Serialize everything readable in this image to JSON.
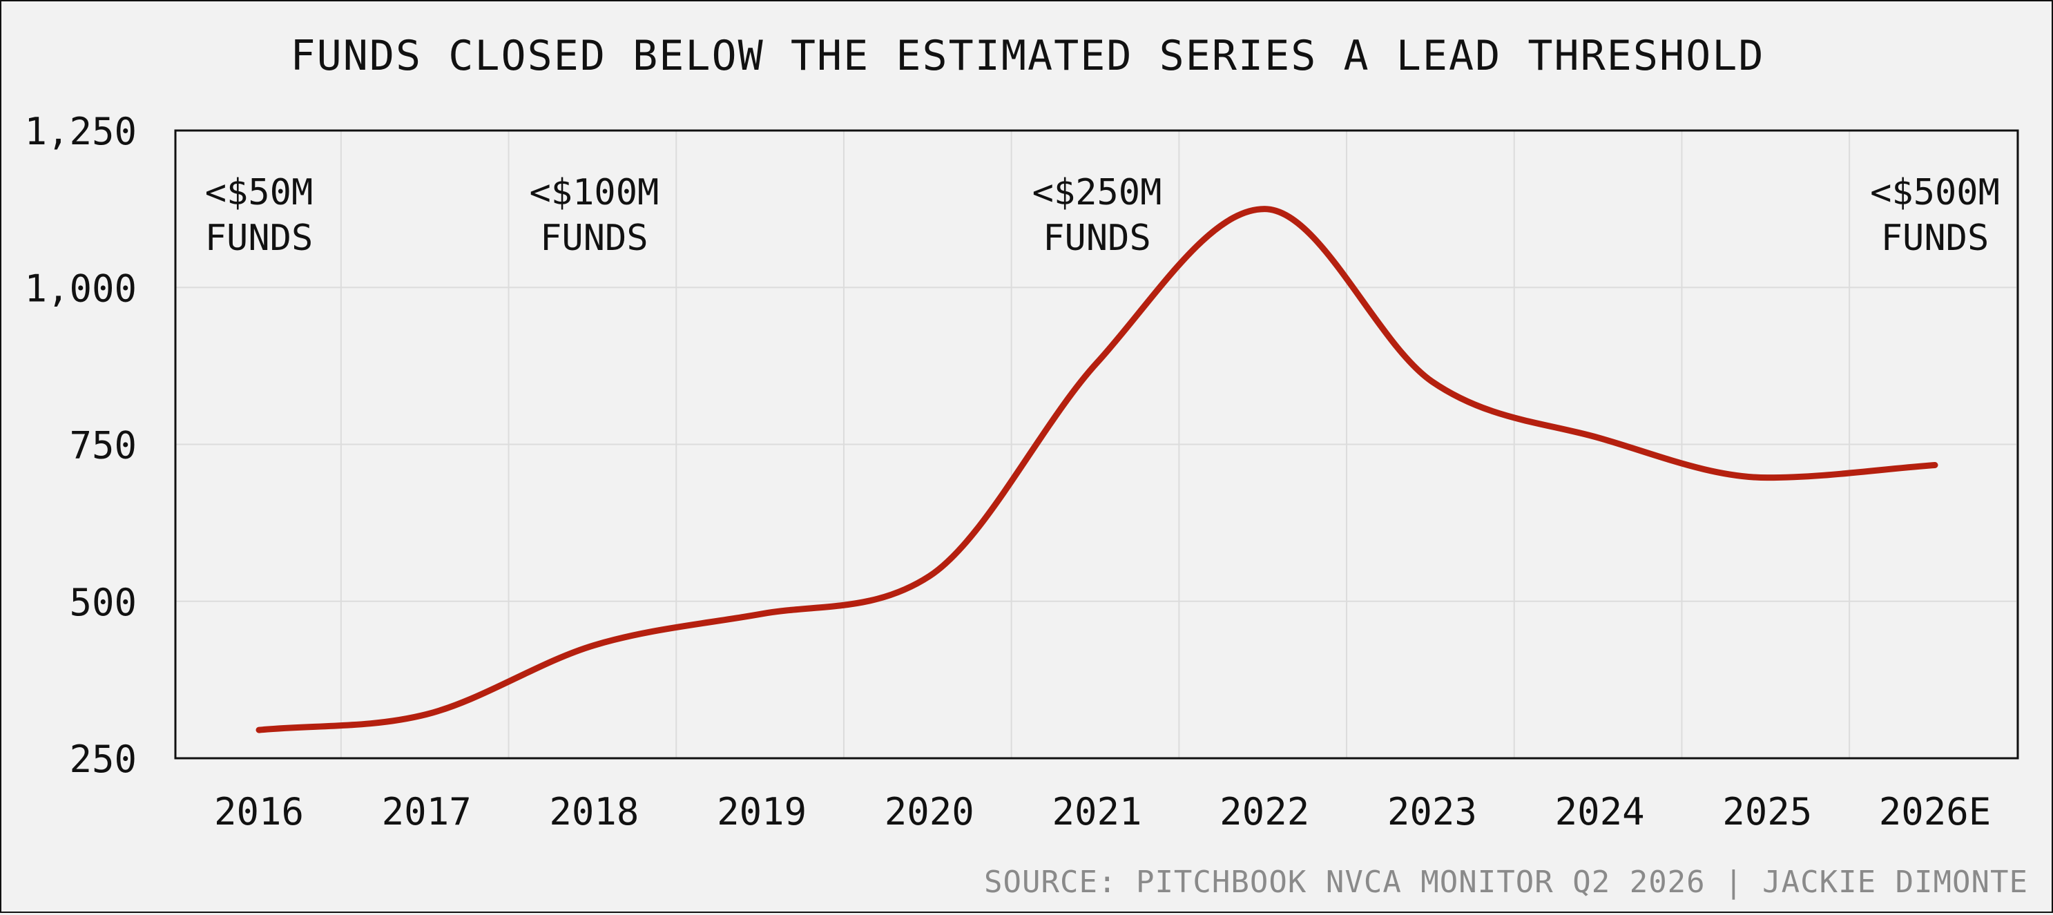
{
  "chart_data": {
    "type": "line",
    "title": "FUNDS CLOSED BELOW THE ESTIMATED SERIES A LEAD THRESHOLD",
    "source": "SOURCE: PITCHBOOK NVCA MONITOR Q2 2026 | JACKIE DIMONTE",
    "xlabel": "",
    "ylabel": "",
    "categories": [
      "2016",
      "2017",
      "2018",
      "2019",
      "2020",
      "2021",
      "2022",
      "2023",
      "2024",
      "2025",
      "2026E"
    ],
    "ylim": [
      250,
      1250
    ],
    "yticks": [
      250,
      500,
      750,
      1000,
      1250
    ],
    "ytick_labels": [
      "250",
      "500",
      "750",
      "1,000",
      "1,250"
    ],
    "grid": true,
    "line_color": "#b5200f",
    "series": [
      {
        "values": [
          295,
          320,
          430,
          480,
          540,
          880,
          1125,
          850,
          760,
          697,
          717
        ]
      }
    ],
    "annotations": [
      {
        "at": "2016",
        "lines": [
          "<$50M",
          "FUNDS"
        ]
      },
      {
        "at": "2018",
        "lines": [
          "<$100M",
          "FUNDS"
        ]
      },
      {
        "at": "2021",
        "lines": [
          "<$250M",
          "FUNDS"
        ]
      },
      {
        "at": "2026E",
        "lines": [
          "<$500M",
          "FUNDS"
        ]
      }
    ]
  }
}
